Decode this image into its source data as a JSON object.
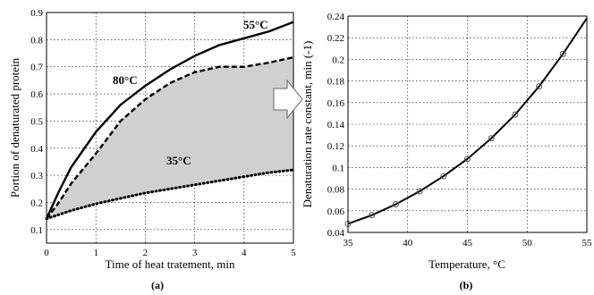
{
  "chart_data": [
    {
      "type": "area",
      "panel_label": "(a)",
      "xlabel": "Time of heat tratement, min",
      "ylabel": "Portion of denaturated protein",
      "xlim": [
        0,
        5
      ],
      "ylim": [
        0.05,
        0.9
      ],
      "xticks": [
        "0",
        "1",
        "2",
        "3",
        "4",
        "5"
      ],
      "yticks": [
        "0.1",
        "0.2",
        "0.3",
        "0.4",
        "0.5",
        "0.6",
        "0.7",
        "0.8",
        "0.9"
      ],
      "grid": true,
      "series": [
        {
          "name": "80°C",
          "style": "solid",
          "x": [
            0,
            0.25,
            0.5,
            1,
            1.5,
            2,
            2.5,
            3,
            3.5,
            4,
            4.5,
            5
          ],
          "y": [
            0.14,
            0.24,
            0.33,
            0.46,
            0.56,
            0.63,
            0.69,
            0.74,
            0.78,
            0.805,
            0.83,
            0.865
          ]
        },
        {
          "name": "55°C",
          "style": "dashed",
          "x": [
            0,
            0.25,
            0.5,
            1,
            1.5,
            2,
            2.5,
            3,
            3.5,
            4,
            4.5,
            5
          ],
          "y": [
            0.14,
            0.2,
            0.27,
            0.38,
            0.5,
            0.58,
            0.64,
            0.68,
            0.7,
            0.7,
            0.715,
            0.735
          ]
        },
        {
          "name": "35°C",
          "style": "dotted",
          "x": [
            0,
            0.5,
            1,
            1.5,
            2,
            2.5,
            3,
            3.5,
            4,
            4.5,
            5
          ],
          "y": [
            0.14,
            0.17,
            0.195,
            0.215,
            0.235,
            0.25,
            0.265,
            0.28,
            0.295,
            0.31,
            0.32
          ]
        }
      ],
      "shaded_between": [
        "55°C",
        "35°C"
      ],
      "shade_color": "#d0d0d0",
      "annotations": [
        "80°C",
        "55°C",
        "35°C"
      ]
    },
    {
      "type": "line",
      "panel_label": "(b)",
      "xlabel": "Temperature, °C",
      "ylabel": "Denaturation rate constant, min (-1)",
      "xlim": [
        35,
        55
      ],
      "ylim": [
        0.04,
        0.24
      ],
      "xticks": [
        "35",
        "40",
        "45",
        "50",
        "55"
      ],
      "yticks": [
        "0.04",
        "0.06",
        "0.08",
        "0.1",
        "0.12",
        "0.14",
        "0.16",
        "0.18",
        "0.2",
        "0.22",
        "0.24"
      ],
      "grid": true,
      "series": [
        {
          "style": "solid-with-circle-markers",
          "x": [
            35,
            37,
            39,
            41,
            43,
            45,
            47,
            49,
            51,
            53
          ],
          "y": [
            0.048,
            0.056,
            0.066,
            0.078,
            0.092,
            0.108,
            0.127,
            0.149,
            0.175,
            0.205
          ]
        }
      ],
      "curve_end": [
        55,
        0.238
      ]
    }
  ]
}
